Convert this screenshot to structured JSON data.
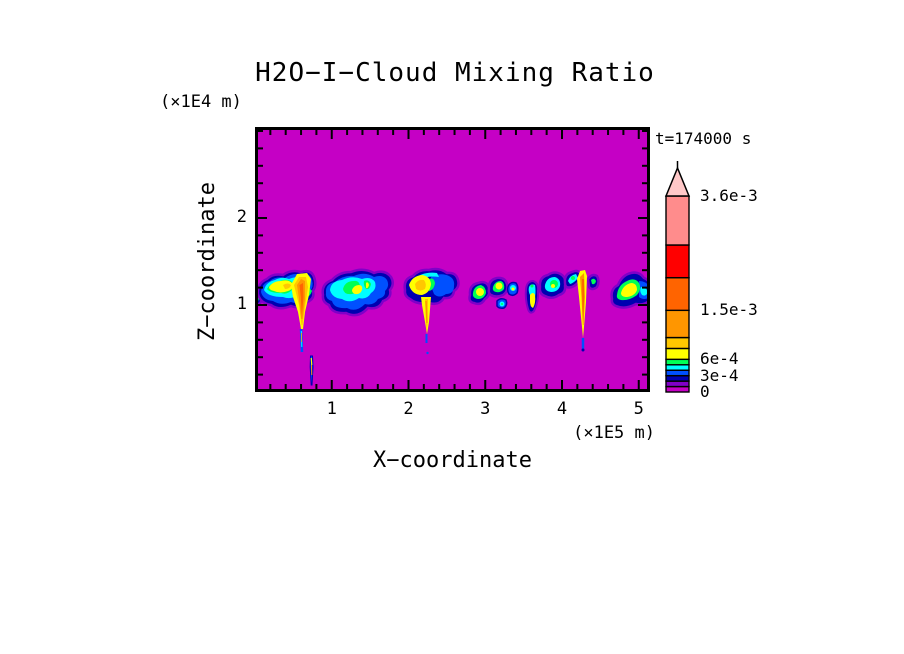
{
  "title": "H2O−I−Cloud Mixing Ratio",
  "time_label": "t=174000 s",
  "x_axis": {
    "label": "X−coordinate",
    "unit": "(×1E5 m)",
    "ticks": [
      {
        "v": 1,
        "label": "1"
      },
      {
        "v": 2,
        "label": "2"
      },
      {
        "v": 3,
        "label": "3"
      },
      {
        "v": 4,
        "label": "4"
      },
      {
        "v": 5,
        "label": "5"
      }
    ],
    "minor_step": 0.2,
    "max": 5.146
  },
  "y_axis": {
    "label": "Z−coordinate",
    "unit": "(×1E4 m)",
    "ticks": [
      {
        "v": 1,
        "label": "1"
      },
      {
        "v": 2,
        "label": "2"
      }
    ],
    "minor_step": 0.2,
    "max": 3.045
  },
  "colorbar": {
    "levels": [
      0,
      0.0001,
      0.0002,
      0.0003,
      0.0004,
      0.0005,
      0.0006,
      0.0008,
      0.001,
      0.0015,
      0.0021,
      0.0027,
      0.0036
    ],
    "colors": [
      "#C500C5",
      "#8000C8",
      "#0000B0",
      "#0050FF",
      "#00FFFF",
      "#00FF55",
      "#FFFF00",
      "#FFC800",
      "#FF9600",
      "#FF6400",
      "#FF0000",
      "#FF8C8C"
    ],
    "arrow_color": "#FFC8C8",
    "labels": [
      {
        "value": 0.0036,
        "label": "3.6e-3"
      },
      {
        "value": 0.0015,
        "label": "1.5e-3"
      },
      {
        "value": 0.0006,
        "label": "6e-4"
      },
      {
        "value": 0.0003,
        "label": "3e-4"
      },
      {
        "value": 0,
        "label": "0"
      }
    ]
  },
  "plot": {
    "background_color": "#C500C5"
  },
  "chart_data": {
    "type": "heatmap",
    "title": "H2O−I−Cloud Mixing Ratio",
    "time_annotation": "t=174000 s",
    "xlabel": "X−coordinate",
    "x_unit": "(×1E5 m)",
    "x_ticks": [
      1,
      2,
      3,
      4,
      5
    ],
    "xlim": [
      0,
      5.15
    ],
    "ylabel": "Z−coordinate",
    "y_unit": "(×1E4 m)",
    "y_ticks": [
      1,
      2
    ],
    "ylim": [
      0,
      3.05
    ],
    "grid": false,
    "legend_position": "right-colorbar-with-overflow-arrow",
    "contour_levels": [
      0,
      0.0001,
      0.0002,
      0.0003,
      0.0004,
      0.0005,
      0.0006,
      0.0008,
      0.001,
      0.0015,
      0.0021,
      0.0027,
      0.0036
    ],
    "palette": [
      "#C500C5",
      "#8000C8",
      "#0000B0",
      "#0050FF",
      "#00FFFF",
      "#00FF55",
      "#FFFF00",
      "#FFC800",
      "#FF9600",
      "#FF6400",
      "#FF0000",
      "#FF8C8C"
    ],
    "colorbar_labeled_levels": [
      "0",
      "3e-4",
      "6e-4",
      "1.5e-3",
      "3.6e-3"
    ],
    "background_value": 0,
    "features": {
      "description": "Broken line of shallow clouds centered near z = 1.0–1.35 (×1E4 m) across the whole x domain; interiors reach ~6e-4 to 1e-3 (yellow/gold) with narrow precipitation shafts of ~1e-3 to 2e-3 (orange) extending toward the surface.",
      "cloud_x_extents_1e5m": [
        [
          0.0,
          0.78
        ],
        [
          0.89,
          1.79
        ],
        [
          1.95,
          2.65
        ],
        [
          2.8,
          3.28
        ],
        [
          3.3,
          3.41
        ],
        [
          3.52,
          3.69
        ],
        [
          3.71,
          4.43
        ],
        [
          4.65,
          5.15
        ]
      ],
      "cloud_layer_height_1e4m": [
        0.95,
        1.35
      ],
      "precip_streaks": [
        {
          "x_1e5m": 0.6,
          "z_bottom_1e4m": 0.08
        },
        {
          "x_1e5m": 2.24,
          "z_bottom_1e4m": 0.55
        },
        {
          "x_1e5m": 4.27,
          "z_bottom_1e4m": 0.48
        }
      ]
    }
  }
}
